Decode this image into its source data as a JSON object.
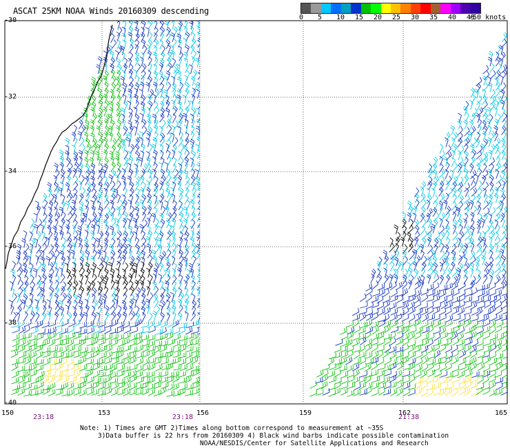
{
  "title": "ASCAT 25KM NOAA Winds 20160309 descending",
  "scale": {
    "colors": [
      "#555555",
      "#999999",
      "#00c8ff",
      "#0070ff",
      "#00a0c0",
      "#0033cc",
      "#00c000",
      "#00ff00",
      "#ffff00",
      "#ffc000",
      "#ff8000",
      "#ff4000",
      "#ff0000",
      "#a06030",
      "#ff00ff",
      "#a000ff",
      "#5000b0",
      "#3000a0"
    ],
    "labels": [
      "0",
      "5",
      "10",
      "15",
      "20",
      "25",
      "30",
      "35",
      "40",
      "45"
    ],
    "unit": ">50 knots"
  },
  "axes": {
    "lat_labels": [
      "-30",
      "-32",
      "-34",
      "-36",
      "-38",
      "-40"
    ],
    "lon_labels_left": [
      "150",
      "153",
      "156"
    ],
    "lon_labels_right": [
      "159",
      "162",
      "165"
    ],
    "times": [
      "23:18",
      "23:18",
      "21:38"
    ]
  },
  "notes": [
    "Note: 1) Times are GMT 2)Times along bottom correspond to measurement at ~35S",
    "3)Data buffer is 22 hrs from 20160309 4) Black wind barbs indicate possible contamination",
    "NOAA/NESDIS/Center for Satellite Applications and Research"
  ],
  "barb_colors": {
    "blue": "#1030c0",
    "cyan": "#00c8e6",
    "green": "#10c010",
    "yellow": "#ffe040",
    "black": "#000000"
  }
}
